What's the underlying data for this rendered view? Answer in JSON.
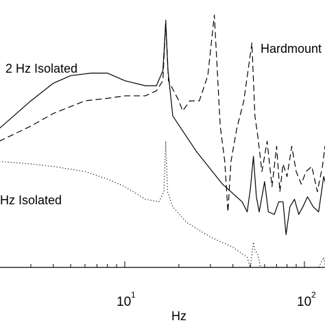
{
  "chart_data": {
    "type": "line",
    "xlabel": "Hz",
    "x_scale": "log",
    "x_ticks": [
      {
        "value": 10,
        "base": "10",
        "exp": "1"
      },
      {
        "value": 100,
        "base": "10",
        "exp": "2"
      }
    ],
    "annotations": [
      {
        "text": "2 Hz Isolated"
      },
      {
        "text": "Hardmount"
      },
      {
        "text": "Hz Isolated"
      }
    ],
    "series": [
      {
        "style": "solid",
        "points": [
          [
            2.0,
            0.55
          ],
          [
            3.0,
            0.66
          ],
          [
            4.0,
            0.73
          ],
          [
            5.0,
            0.76
          ],
          [
            6.5,
            0.77
          ],
          [
            8.0,
            0.77
          ],
          [
            10.0,
            0.74
          ],
          [
            13.0,
            0.72
          ],
          [
            15.0,
            0.72
          ],
          [
            16.3,
            0.78
          ],
          [
            16.9,
            0.97
          ],
          [
            17.4,
            0.78
          ],
          [
            18.5,
            0.6
          ],
          [
            25.0,
            0.46
          ],
          [
            35.0,
            0.33
          ],
          [
            45.0,
            0.26
          ],
          [
            48.0,
            0.22
          ],
          [
            50.0,
            0.31
          ],
          [
            52.0,
            0.44
          ],
          [
            54.0,
            0.28
          ],
          [
            56.0,
            0.22
          ],
          [
            58.0,
            0.28
          ],
          [
            60.0,
            0.34
          ],
          [
            63.0,
            0.22
          ],
          [
            68.0,
            0.21
          ],
          [
            72.0,
            0.26
          ],
          [
            76.0,
            0.26
          ],
          [
            79.0,
            0.13
          ],
          [
            83.0,
            0.24
          ],
          [
            88.0,
            0.27
          ],
          [
            93.0,
            0.21
          ],
          [
            98.0,
            0.24
          ],
          [
            104.0,
            0.28
          ],
          [
            112.0,
            0.24
          ],
          [
            120.0,
            0.22
          ],
          [
            128.0,
            0.36
          ],
          [
            135.0,
            0.3
          ]
        ]
      },
      {
        "style": "dashed",
        "points": [
          [
            2.0,
            0.5
          ],
          [
            3.0,
            0.56
          ],
          [
            4.0,
            0.61
          ],
          [
            6.0,
            0.66
          ],
          [
            8.0,
            0.67
          ],
          [
            10.0,
            0.68
          ],
          [
            13.0,
            0.68
          ],
          [
            15.0,
            0.7
          ],
          [
            16.3,
            0.74
          ],
          [
            16.9,
            0.98
          ],
          [
            17.5,
            0.74
          ],
          [
            20.0,
            0.66
          ],
          [
            21.0,
            0.62
          ],
          [
            23.0,
            0.66
          ],
          [
            26.0,
            0.66
          ],
          [
            29.0,
            0.76
          ],
          [
            31.5,
            1.0
          ],
          [
            34.0,
            0.56
          ],
          [
            36.0,
            0.42
          ],
          [
            37.5,
            0.22
          ],
          [
            39.0,
            0.42
          ],
          [
            42.0,
            0.55
          ],
          [
            46.0,
            0.66
          ],
          [
            49.0,
            0.8
          ],
          [
            51.0,
            0.89
          ],
          [
            53.0,
            0.6
          ],
          [
            55.0,
            0.52
          ],
          [
            58.0,
            0.38
          ],
          [
            62.0,
            0.5
          ],
          [
            66.0,
            0.32
          ],
          [
            70.0,
            0.48
          ],
          [
            73.0,
            0.3
          ],
          [
            76.0,
            0.41
          ],
          [
            80.0,
            0.36
          ],
          [
            85.0,
            0.48
          ],
          [
            90.0,
            0.38
          ],
          [
            96.0,
            0.33
          ],
          [
            102.0,
            0.38
          ],
          [
            110.0,
            0.4
          ],
          [
            118.0,
            0.3
          ],
          [
            126.0,
            0.4
          ],
          [
            130.0,
            0.48
          ],
          [
            135.0,
            0.36
          ]
        ]
      },
      {
        "style": "dotted",
        "points": [
          [
            2.0,
            0.42
          ],
          [
            3.0,
            0.41
          ],
          [
            4.0,
            0.4
          ],
          [
            6.0,
            0.38
          ],
          [
            8.0,
            0.35
          ],
          [
            10.0,
            0.32
          ],
          [
            13.0,
            0.27
          ],
          [
            15.5,
            0.26
          ],
          [
            16.5,
            0.3
          ],
          [
            16.9,
            0.5
          ],
          [
            17.3,
            0.3
          ],
          [
            18.5,
            0.24
          ],
          [
            22.0,
            0.18
          ],
          [
            30.0,
            0.12
          ],
          [
            40.0,
            0.08
          ],
          [
            48.0,
            0.04
          ],
          [
            50.0,
            0.0
          ],
          [
            52.0,
            0.1
          ],
          [
            53.0,
            0.07
          ],
          [
            55.0,
            0.05
          ],
          [
            57.0,
            0.0
          ],
          [
            60.0,
            0.0
          ],
          [
            120.0,
            0.0
          ],
          [
            128.0,
            0.04
          ],
          [
            131.0,
            0.0
          ]
        ]
      }
    ]
  }
}
